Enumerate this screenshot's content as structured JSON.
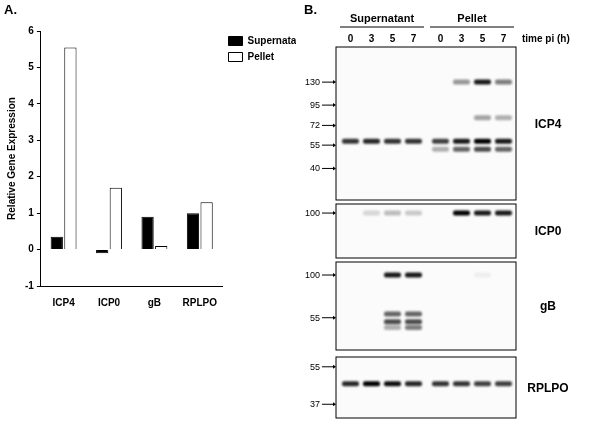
{
  "chart_data": {
    "type": "bar",
    "categories": [
      "ICP4",
      "ICP0",
      "gB",
      "RPLPO"
    ],
    "series": [
      {
        "name": "Supernatant",
        "color": "#000000",
        "values": [
          0.35,
          -0.1,
          0.9,
          1.0
        ]
      },
      {
        "name": "Pellet",
        "color": "#ffffff",
        "values": [
          5.55,
          1.7,
          0.1,
          1.3
        ]
      }
    ],
    "y_label": "Relative Gene Expression",
    "ylim": [
      -1,
      6
    ],
    "yticks": [
      -1,
      0,
      1,
      2,
      3,
      4,
      5,
      6
    ],
    "grid": false,
    "legend": "upper right"
  },
  "figure": {
    "panel_labels": [
      "A.",
      "B."
    ],
    "groups": [
      "Supernatant",
      "Pellet"
    ],
    "time_points": [
      0,
      3,
      5,
      7
    ],
    "time_label": "time pi (h)",
    "blots": [
      {
        "name": "ICP4",
        "kda_range": [
          210,
          26
        ],
        "markers": [
          130,
          95,
          72,
          55,
          40
        ],
        "bands": [
          {
            "kda": 130,
            "intensity": [
              0,
              0,
              0,
              0,
              0,
              0.4,
              0.9,
              0.5
            ]
          },
          {
            "kda": 80,
            "intensity": [
              0,
              0,
              0,
              0,
              0,
              0,
              0.35,
              0.3
            ]
          },
          {
            "kda": 58,
            "intensity": [
              0.8,
              0.85,
              0.8,
              0.8,
              0.75,
              0.9,
              1,
              0.9
            ]
          },
          {
            "kda": 52,
            "intensity": [
              0,
              0,
              0,
              0,
              0.3,
              0.6,
              0.7,
              0.6
            ]
          }
        ]
      },
      {
        "name": "ICP0",
        "kda_range": [
          115,
          50
        ],
        "markers": [
          100
        ],
        "bands": [
          {
            "kda": 100,
            "intensity": [
              0,
              0.15,
              0.25,
              0.2,
              0,
              1,
              0.9,
              0.9
            ]
          }
        ]
      },
      {
        "name": "gB",
        "kda_range": [
          120,
          35
        ],
        "markers": [
          100,
          55
        ],
        "bands": [
          {
            "kda": 100,
            "intensity": [
              0,
              0,
              0.9,
              0.9,
              0,
              0,
              0.05,
              0
            ]
          },
          {
            "kda": 58,
            "intensity": [
              0,
              0,
              0.6,
              0.6,
              0,
              0,
              0,
              0
            ]
          },
          {
            "kda": 52,
            "intensity": [
              0,
              0,
              0.7,
              0.7,
              0,
              0,
              0,
              0
            ]
          },
          {
            "kda": 48,
            "intensity": [
              0,
              0,
              0.3,
              0.5,
              0,
              0,
              0,
              0
            ]
          }
        ]
      },
      {
        "name": "RPLPO",
        "kda_range": [
          61,
          32
        ],
        "markers": [
          55,
          37
        ],
        "bands": [
          {
            "kda": 46,
            "intensity": [
              0.85,
              1,
              0.95,
              0.85,
              0.8,
              0.8,
              0.75,
              0.75
            ]
          }
        ]
      }
    ]
  }
}
